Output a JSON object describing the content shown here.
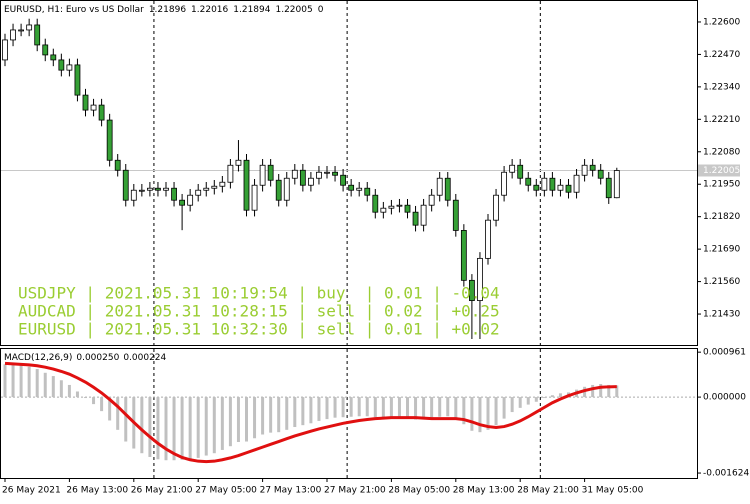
{
  "chart_data": [
    {
      "type": "candlestick",
      "symbol_title": "EURUSD, H1:  Euro vs US Dollar",
      "header_suffix": "0",
      "categories": [
        "26 May 2021",
        null,
        null,
        null,
        null,
        null,
        null,
        null,
        "26 May 13:00",
        null,
        null,
        null,
        null,
        null,
        null,
        null,
        "26 May 21:00",
        null,
        null,
        null,
        null,
        null,
        null,
        null,
        "27 May 05:00",
        null,
        null,
        null,
        null,
        null,
        null,
        null,
        "27 May 13:00",
        null,
        null,
        null,
        null,
        null,
        null,
        null,
        "27 May 21:00",
        null,
        null,
        null,
        null,
        null,
        null,
        null,
        "28 May 05:00",
        null,
        null,
        null,
        null,
        null,
        null,
        null,
        "28 May 13:00",
        null,
        null,
        null,
        null,
        null,
        null,
        null,
        "28 May 21:00",
        null,
        null,
        null,
        null,
        null,
        null,
        null,
        "31 May 05:00",
        null,
        null,
        null,
        null
      ],
      "open": [
        1.22448,
        1.22528,
        1.22568,
        1.22568,
        1.22588,
        1.22508,
        1.22468,
        1.22448,
        1.22407,
        1.22428,
        1.22307,
        1.22247,
        1.22267,
        1.22207,
        1.22046,
        1.22006,
        1.21886,
        1.21926,
        1.21926,
        1.21934,
        1.21926,
        1.21934,
        1.21886,
        1.21866,
        1.21906,
        1.21926,
        1.21934,
        1.21942,
        1.21958,
        1.22026,
        1.22046,
        1.21846,
        1.21946,
        1.22026,
        1.21966,
        1.21886,
        1.21974,
        1.22006,
        1.21946,
        1.21974,
        1.21998,
        1.21998,
        1.21986,
        1.21946,
        1.21926,
        1.21934,
        1.21906,
        1.21838,
        1.21854,
        1.21862,
        1.21866,
        1.21838,
        1.21786,
        1.21866,
        1.21906,
        1.21974,
        1.21886,
        1.21765,
        1.21565,
        1.21484,
        1.21653,
        1.21806,
        1.21906,
        1.21998,
        1.22026,
        1.21974,
        1.21946,
        1.21926,
        1.21974,
        1.21926,
        1.21946,
        1.21918,
        1.21986,
        1.22026,
        1.22006,
        1.21974,
        1.21896
      ],
      "high": [
        1.22553,
        1.22593,
        1.22593,
        1.22613,
        1.22613,
        1.22533,
        1.22493,
        1.22473,
        1.22453,
        1.22453,
        1.22332,
        1.22292,
        1.22292,
        1.22232,
        1.22071,
        1.22031,
        1.21951,
        1.21951,
        1.21959,
        1.21959,
        1.21959,
        1.21959,
        1.21911,
        1.21931,
        1.21951,
        1.21959,
        1.21967,
        1.21983,
        1.22051,
        1.22127,
        1.22071,
        1.21971,
        1.22051,
        1.22051,
        1.21991,
        1.21999,
        1.22031,
        1.22031,
        1.21999,
        1.22023,
        1.22023,
        1.22023,
        1.22011,
        1.21971,
        1.21959,
        1.21959,
        1.21931,
        1.21879,
        1.21887,
        1.21891,
        1.21891,
        1.21863,
        1.21891,
        1.21931,
        1.21999,
        1.21999,
        1.21911,
        1.2179,
        1.2159,
        1.21678,
        1.21831,
        1.21931,
        1.22023,
        1.22051,
        1.22051,
        1.21999,
        1.21971,
        1.21999,
        1.21999,
        1.21971,
        1.21971,
        1.22011,
        1.22051,
        1.22051,
        1.22031,
        1.21999,
        1.22016
      ],
      "low": [
        1.22423,
        1.22503,
        1.22543,
        1.22543,
        1.22483,
        1.22443,
        1.22423,
        1.22382,
        1.22382,
        1.22282,
        1.22222,
        1.22222,
        1.22182,
        1.22021,
        1.21981,
        1.21861,
        1.21861,
        1.21901,
        1.21901,
        1.21901,
        1.21901,
        1.21861,
        1.21766,
        1.21841,
        1.21881,
        1.21901,
        1.21909,
        1.21917,
        1.21933,
        1.22001,
        1.21821,
        1.21821,
        1.21921,
        1.21941,
        1.21861,
        1.21861,
        1.21949,
        1.21921,
        1.21921,
        1.21949,
        1.21973,
        1.21961,
        1.21921,
        1.21901,
        1.21901,
        1.21881,
        1.21813,
        1.21813,
        1.21829,
        1.21837,
        1.21813,
        1.21761,
        1.21761,
        1.21841,
        1.21881,
        1.21861,
        1.2174,
        1.2154,
        1.2133,
        1.2133,
        1.21628,
        1.21781,
        1.21881,
        1.21973,
        1.21949,
        1.21921,
        1.21901,
        1.21901,
        1.21901,
        1.21901,
        1.21893,
        1.21893,
        1.21961,
        1.21981,
        1.21949,
        1.21871,
        1.21894
      ],
      "close": [
        1.22528,
        1.22568,
        1.22568,
        1.22588,
        1.22508,
        1.22468,
        1.22448,
        1.22407,
        1.22428,
        1.22307,
        1.22247,
        1.22267,
        1.22207,
        1.22046,
        1.22006,
        1.21886,
        1.21926,
        1.21926,
        1.21934,
        1.21926,
        1.21934,
        1.21886,
        1.21866,
        1.21906,
        1.21926,
        1.21934,
        1.21942,
        1.21958,
        1.22026,
        1.22046,
        1.21846,
        1.21946,
        1.22026,
        1.21966,
        1.21886,
        1.21974,
        1.22006,
        1.21946,
        1.21974,
        1.21998,
        1.21998,
        1.21986,
        1.21946,
        1.21926,
        1.21934,
        1.21906,
        1.21838,
        1.21854,
        1.21862,
        1.21866,
        1.21838,
        1.21786,
        1.21866,
        1.21906,
        1.21974,
        1.21886,
        1.21765,
        1.21565,
        1.21484,
        1.21653,
        1.21806,
        1.21906,
        1.21998,
        1.22026,
        1.21974,
        1.21946,
        1.21926,
        1.21974,
        1.21926,
        1.21946,
        1.21918,
        1.21986,
        1.22026,
        1.22006,
        1.21974,
        1.21896,
        1.22005
      ],
      "up_color": "#ffffff",
      "down_color": "#35a035",
      "ylim": [
        1.21306,
        1.22688
      ],
      "yticks": [
        {
          "value": 1.226,
          "label": "1.22600"
        },
        {
          "value": 1.2247,
          "label": "1.22470"
        },
        {
          "value": 1.2234,
          "label": "1.22340"
        },
        {
          "value": 1.2221,
          "label": "1.22210"
        },
        {
          "value": 1.2208,
          "label": "1.22080"
        },
        {
          "value": 1.2195,
          "label": "1.21950"
        },
        {
          "value": 1.2182,
          "label": "1.21820"
        },
        {
          "value": 1.2169,
          "label": "1.21690"
        },
        {
          "value": 1.2156,
          "label": "1.21560"
        },
        {
          "value": 1.2143,
          "label": "1.21430"
        }
      ],
      "annotations": [
        "USDJPY | 2021.05.31 10:19:54 | buy  | 0.01 | -0.04",
        "AUDCAD | 2021.05.31 10:28:15 | sell | 0.02 | +0.25",
        "EURUSD | 2021.05.31 10:32:30 | sell | 0.01 | +0.02"
      ],
      "annotation_color": "#9acd32"
    },
    {
      "type": "macd",
      "title": "MACD(12,26,9)",
      "readout": [
        "0.000250",
        "0.000224"
      ],
      "values": [
        0.0007,
        0.0007,
        0.00068,
        0.00065,
        0.0006,
        0.00052,
        0.00045,
        0.00036,
        0.00026,
        0.00012,
        -2e-05,
        -0.00015,
        -0.0003,
        -0.0005,
        -0.0007,
        -0.00095,
        -0.0011,
        -0.0012,
        -0.00128,
        -0.00133,
        -0.00135,
        -0.00135,
        -0.00134,
        -0.00132,
        -0.0013,
        -0.00125,
        -0.0012,
        -0.00113,
        -0.00105,
        -0.00096,
        -0.00095,
        -0.00088,
        -0.0008,
        -0.00076,
        -0.00075,
        -0.0007,
        -0.00064,
        -0.0006,
        -0.00056,
        -0.00051,
        -0.00047,
        -0.00044,
        -0.00043,
        -0.00042,
        -0.00041,
        -0.00041,
        -0.00043,
        -0.00044,
        -0.00045,
        -0.00045,
        -0.00046,
        -0.00048,
        -0.00048,
        -0.00046,
        -0.00042,
        -0.00041,
        -0.00046,
        -0.00058,
        -0.00072,
        -0.00075,
        -0.0007,
        -0.0006,
        -0.00046,
        -0.00032,
        -0.00023,
        -0.00016,
        -0.0001,
        -2e-05,
        4e-05,
        8e-05,
        0.0001,
        0.00016,
        0.00022,
        0.00026,
        0.00028,
        0.00026,
        0.00025
      ],
      "signal": [
        0.00072,
        0.00071,
        0.0007,
        0.00069,
        0.00067,
        0.00064,
        0.0006,
        0.00055,
        0.00049,
        0.00041,
        0.00032,
        0.00021,
        9e-05,
        -5e-05,
        -0.0002,
        -0.00037,
        -0.00054,
        -0.0007,
        -0.00085,
        -0.00099,
        -0.00111,
        -0.00121,
        -0.00129,
        -0.00134,
        -0.00137,
        -0.00138,
        -0.00137,
        -0.00134,
        -0.0013,
        -0.00125,
        -0.00119,
        -0.00113,
        -0.00107,
        -0.00101,
        -0.00095,
        -0.00089,
        -0.00083,
        -0.00078,
        -0.00073,
        -0.00068,
        -0.00064,
        -0.0006,
        -0.00056,
        -0.00053,
        -0.0005,
        -0.00048,
        -0.00046,
        -0.00045,
        -0.00044,
        -0.00044,
        -0.00044,
        -0.00044,
        -0.00045,
        -0.00046,
        -0.00046,
        -0.00046,
        -0.00046,
        -0.00048,
        -0.00053,
        -0.00059,
        -0.00063,
        -0.00065,
        -0.00063,
        -0.00058,
        -0.00051,
        -0.00042,
        -0.00032,
        -0.00022,
        -0.00012,
        -4e-05,
        3e-05,
        9e-05,
        0.00014,
        0.00018,
        0.00021,
        0.00022,
        0.000224
      ],
      "bar_color": "#c0c0c0",
      "signal_color": "#e01010",
      "ylim": [
        -0.00173,
        0.00105
      ],
      "yticks": [
        {
          "value": 0.000961,
          "label": "0.000961"
        },
        {
          "value": 0,
          "label": "0.000000"
        },
        {
          "value": -0.001624,
          "label": "-0.001624"
        }
      ]
    }
  ]
}
